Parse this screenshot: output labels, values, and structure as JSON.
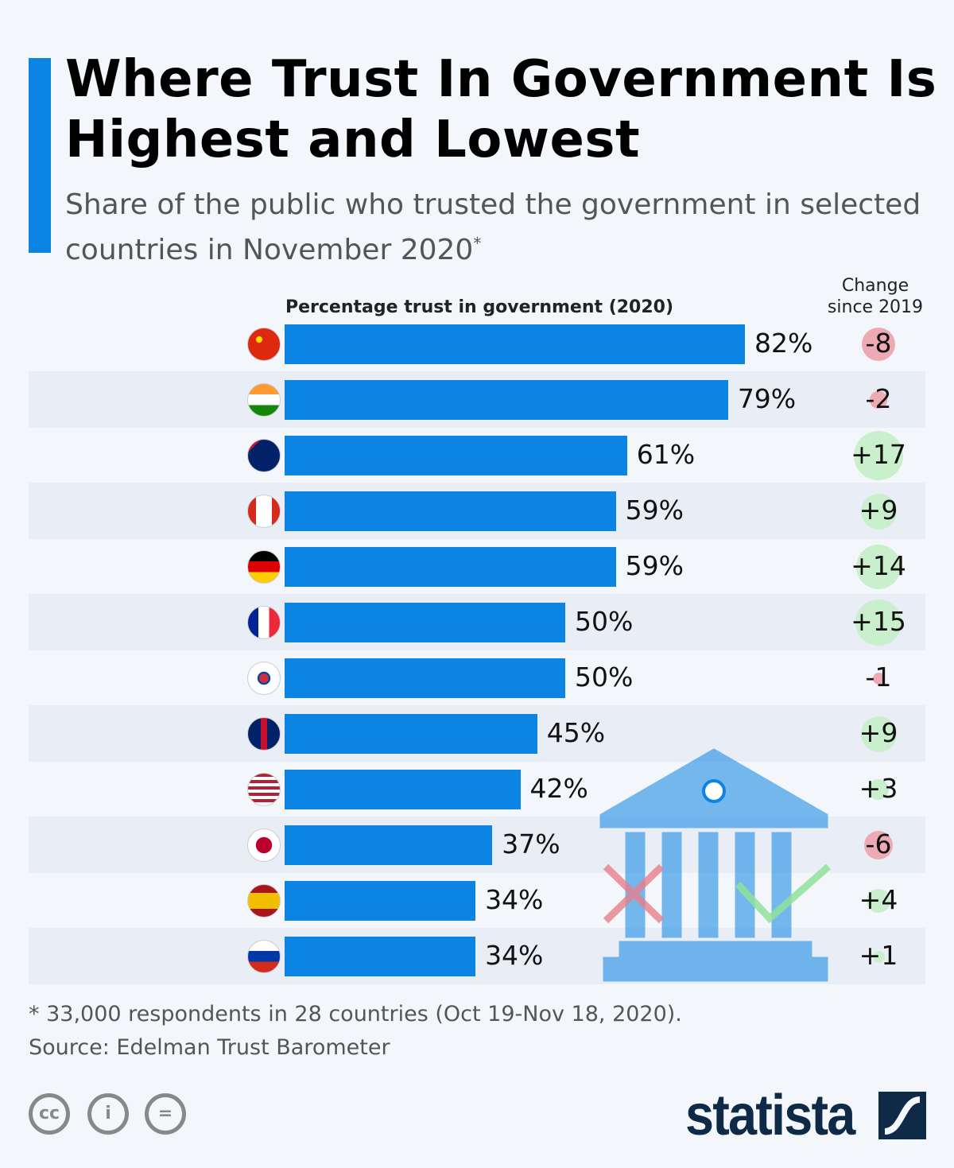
{
  "title": "Where Trust In Government Is Highest and Lowest",
  "subtitle": "Share of the public who trusted the government in selected countries in November 2020",
  "subtitle_mark": "*",
  "chart_data": {
    "type": "bar",
    "orientation": "horizontal",
    "xlabel": "Percentage trust in government (2020)",
    "change_label": "Change since 2019",
    "categories": [
      "China",
      "India",
      "Australia",
      "Canada",
      "Germany",
      "France",
      "South Korea",
      "United Kingdom",
      "United States",
      "Japan",
      "Spain",
      "Russia"
    ],
    "values": [
      82,
      79,
      61,
      59,
      59,
      50,
      50,
      45,
      42,
      37,
      34,
      34
    ],
    "value_labels": [
      "82%",
      "79%",
      "61%",
      "59%",
      "59%",
      "50%",
      "50%",
      "45%",
      "42%",
      "37%",
      "34%",
      "34%"
    ],
    "change": [
      -8,
      -2,
      17,
      9,
      14,
      15,
      -1,
      9,
      3,
      -6,
      4,
      1
    ],
    "change_labels": [
      "-8",
      "-2",
      "+17",
      "+9",
      "+14",
      "+15",
      "-1",
      "+9",
      "+3",
      "-6",
      "+4",
      "+1"
    ],
    "xlim": [
      0,
      100
    ],
    "colors": {
      "bar": "#0b84e3",
      "positive": "#c9efcc",
      "negative": "#eeaab2"
    }
  },
  "footnote": "* 33,000 respondents in 28 countries (Oct 19-Nov 18, 2020).",
  "source": "Source: Edelman Trust Barometer",
  "license_icons": [
    "cc-icon",
    "attribution-icon",
    "no-derivatives-icon"
  ],
  "brand": "statista"
}
